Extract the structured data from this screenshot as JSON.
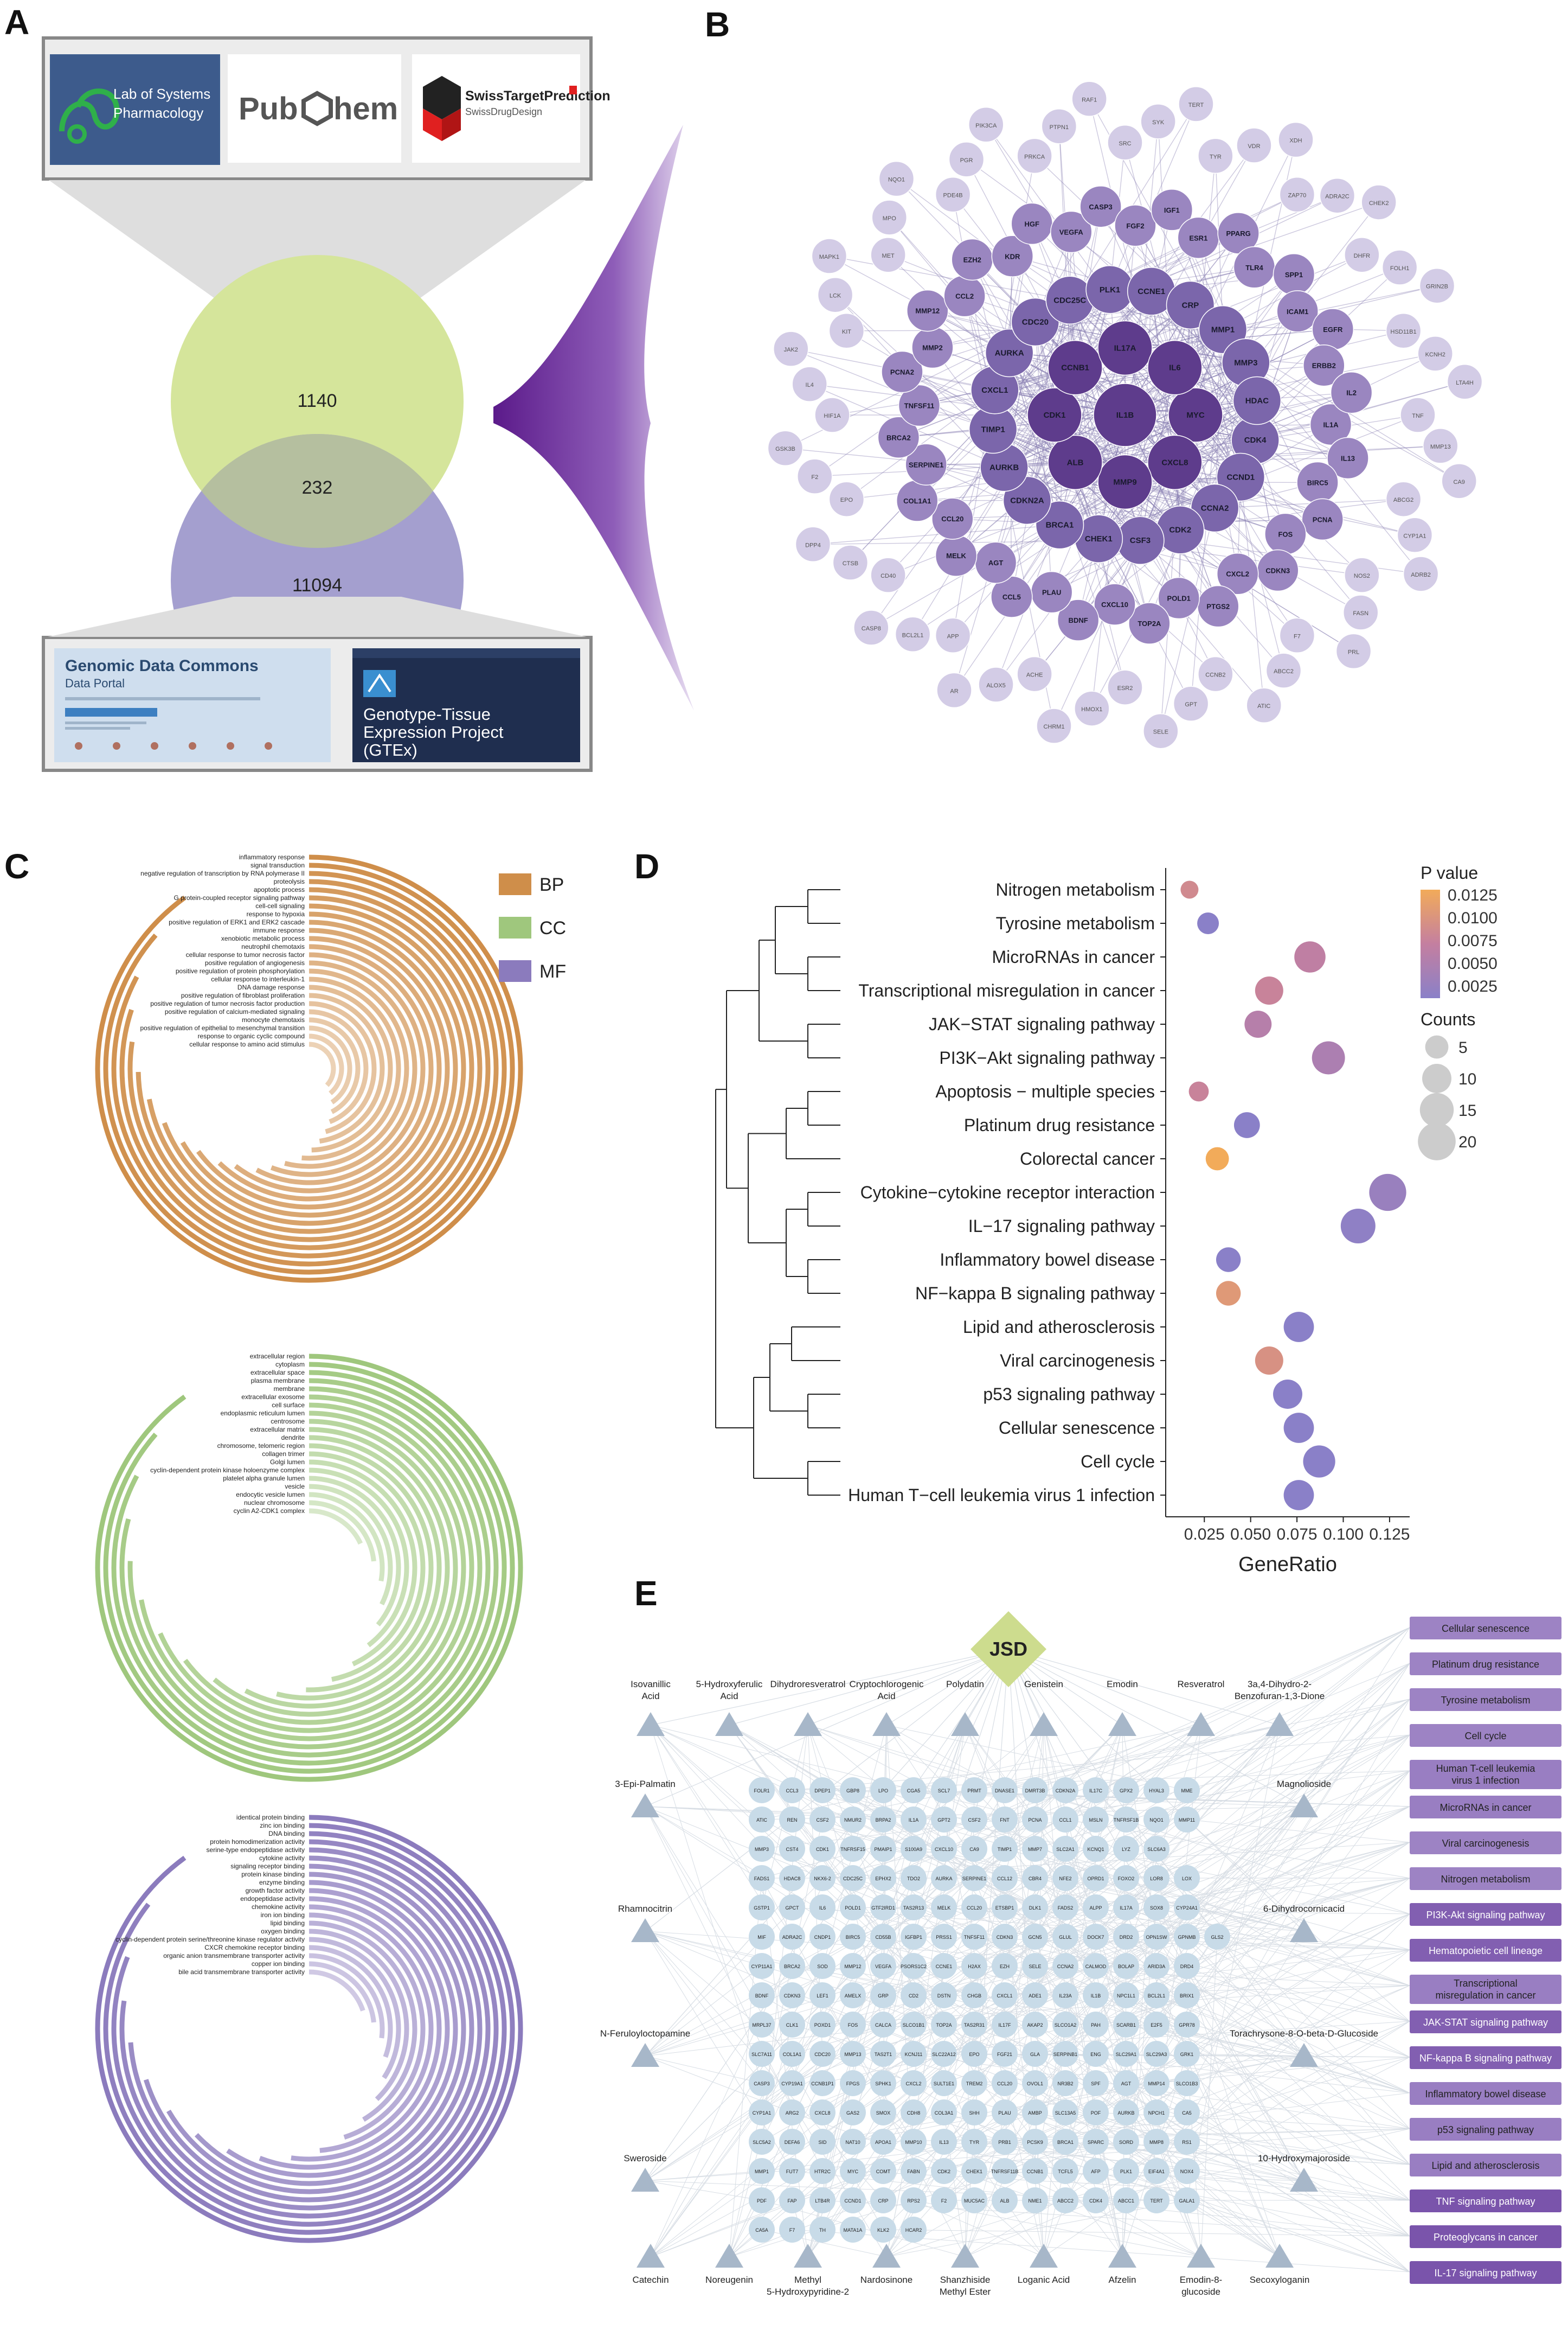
{
  "panels": {
    "a": "A",
    "b": "B",
    "c": "C",
    "d": "D",
    "e": "E"
  },
  "panel_a": {
    "logos": {
      "lsp": "Lab of Systems Pharmacology",
      "lsp_line1": "Lab of Systems",
      "lsp_line2": "Pharmacology",
      "pubchem_left": "Pub",
      "pubchem_right": "hem",
      "swiss_title": "SwissTargetPrediction",
      "swiss_sub": "SwissDrugDesign"
    },
    "venn": {
      "top": "1140",
      "overlap": "232",
      "bottom": "11094"
    },
    "db": {
      "gdc_title": "Genomic Data Commons",
      "gdc_sub": "Data Portal",
      "gtex_line1": "Genotype-Tissue",
      "gtex_line2": "Expression Project",
      "gtex_line3": "(GTEx)"
    },
    "colors": {
      "top_circle": "#d5e59b",
      "bottom_circle": "#a49fcf",
      "overlap": "#b5bf9f"
    }
  },
  "panel_b": {
    "center_nodes": [
      "IL1B",
      "MYC",
      "CXCL8",
      "MMP9",
      "ALB",
      "CDK1",
      "CCNB1",
      "IL17A",
      "IL6",
      "CDK4",
      "CCND1",
      "CCNA2",
      "CDK2",
      "CSF3",
      "CHEK1",
      "BRCA1",
      "CDKN2A",
      "AURKB",
      "TIMP1",
      "CXCL1",
      "AURKA",
      "CDC20",
      "CDC25C",
      "PLK1",
      "CCNE1",
      "CRP",
      "MMP1",
      "MMP3",
      "HDAC"
    ],
    "mid_nodes": [
      "IL1A",
      "IL13",
      "BIRC5",
      "PCNA",
      "FOS",
      "CDKN3",
      "CXCL2",
      "PTGS2",
      "POLD1",
      "TOP2A",
      "CXCL10",
      "BDNF",
      "PLAU",
      "CCL5",
      "AGT",
      "MELK",
      "CCL20",
      "COL1A1",
      "SERPINE1",
      "BRCA2",
      "TNFSF11",
      "PCNA2",
      "MMP2",
      "MMP12",
      "CCL2",
      "EZH2",
      "KDR",
      "HGF",
      "VEGFA",
      "CASP3",
      "FGF2",
      "IGF1",
      "ESR1",
      "PPARG",
      "TLR4",
      "SPP1",
      "ICAM1",
      "EGFR",
      "ERBB2",
      "IL2"
    ],
    "outer_nodes": [
      "TNF",
      "MMP13",
      "CA9",
      "ABCG2",
      "CYP1A1",
      "ADRB2",
      "NOS2",
      "FASN",
      "PRL",
      "F7",
      "ABCC2",
      "ATIC",
      "CCNB2",
      "GPT",
      "SELE",
      "ESR2",
      "HMOX1",
      "CHRM1",
      "ACHE",
      "ALOX5",
      "AR",
      "APP",
      "BCL2L1",
      "CASP8",
      "CD40",
      "CTSB",
      "DPP4",
      "EPO",
      "F2",
      "GSK3B",
      "HIF1A",
      "IL4",
      "JAK2",
      "KIT",
      "LCK",
      "MAPK1",
      "MET",
      "MPO",
      "NQO1",
      "PDE4B",
      "PGR",
      "PIK3CA",
      "PRKCA",
      "PTPN1",
      "RAF1",
      "SRC",
      "SYK",
      "TERT",
      "TYR",
      "VDR",
      "XDH",
      "ZAP70",
      "ADRA2C",
      "CHEK2",
      "DHFR",
      "FOLH1",
      "GRIN2B",
      "HSD11B1",
      "KCNH2",
      "LTA4H"
    ],
    "colors": {
      "dark": "#5e3c8c",
      "mid": "#9a86c0",
      "light": "#d3cce6",
      "pale": "#ebe8f3",
      "edge": "#8f86b5"
    }
  },
  "panel_c": {
    "legend": [
      {
        "label": "BP",
        "color": "#cf8e4a"
      },
      {
        "label": "CC",
        "color": "#9fc77d"
      },
      {
        "label": "MF",
        "color": "#8b7bbd"
      }
    ],
    "bp_terms": [
      "inflammatory response",
      "signal transduction",
      "negative regulation of transcription by RNA polymerase II",
      "proteolysis",
      "apoptotic process",
      "G protein-coupled receptor signaling pathway",
      "cell-cell signaling",
      "response to hypoxia",
      "positive regulation of ERK1 and ERK2 cascade",
      "immune response",
      "xenobiotic metabolic process",
      "neutrophil chemotaxis",
      "cellular response to tumor necrosis factor",
      "positive regulation of angiogenesis",
      "positive regulation of protein phosphorylation",
      "cellular response to interleukin-1",
      "DNA damage response",
      "positive regulation of fibroblast proliferation",
      "positive regulation of tumor necrosis factor production",
      "positive regulation of calcium-mediated signaling",
      "monocyte chemotaxis",
      "positive regulation of epithelial to mesenchymal transition",
      "response to organic cyclic compound",
      "cellular response to amino acid stimulus"
    ],
    "cc_terms": [
      "extracellular region",
      "cytoplasm",
      "extracellular space",
      "plasma membrane",
      "membrane",
      "extracellular exosome",
      "cell surface",
      "endoplasmic reticulum lumen",
      "centrosome",
      "extracellular matrix",
      "dendrite",
      "chromosome, telomeric region",
      "collagen trimer",
      "Golgi lumen",
      "cyclin-dependent protein kinase holoenzyme complex",
      "platelet alpha granule lumen",
      "vesicle",
      "endocytic vesicle lumen",
      "nuclear chromosome",
      "cyclin A2-CDK1 complex"
    ],
    "mf_terms": [
      "identical protein binding",
      "zinc ion binding",
      "DNA binding",
      "protein homodimerization activity",
      "serine-type endopeptidase activity",
      "cytokine activity",
      "signaling receptor binding",
      "protein kinase binding",
      "enzyme binding",
      "growth factor activity",
      "endopeptidase activity",
      "chemokine activity",
      "iron ion binding",
      "lipid binding",
      "oxygen binding",
      "cyclin-dependent protein serine/threonine kinase regulator activity",
      "CXCR chemokine receptor binding",
      "organic anion transmembrane transporter activity",
      "copper ion binding",
      "bile acid transmembrane transporter activity"
    ],
    "bp_values": [
      1.0,
      0.96,
      0.92,
      0.89,
      0.86,
      0.83,
      0.8,
      0.77,
      0.74,
      0.72,
      0.69,
      0.67,
      0.64,
      0.62,
      0.6,
      0.57,
      0.55,
      0.53,
      0.51,
      0.49,
      0.47,
      0.45,
      0.43,
      0.41
    ],
    "cc_values": [
      1.0,
      0.96,
      0.92,
      0.88,
      0.84,
      0.8,
      0.76,
      0.72,
      0.68,
      0.64,
      0.6,
      0.56,
      0.52,
      0.48,
      0.44,
      0.4,
      0.36,
      0.31,
      0.26,
      0.2
    ],
    "mf_values": [
      1.0,
      0.95,
      0.9,
      0.86,
      0.82,
      0.78,
      0.74,
      0.7,
      0.66,
      0.62,
      0.58,
      0.54,
      0.5,
      0.46,
      0.42,
      0.38,
      0.34,
      0.3,
      0.26,
      0.22
    ]
  },
  "chart_data": {
    "type": "scatter",
    "categories": [
      "Nitrogen metabolism",
      "Tyrosine metabolism",
      "MicroRNAs in cancer",
      "Transcriptional misregulation in cancer",
      "JAK−STAT signaling pathway",
      "PI3K−Akt signaling pathway",
      "Apoptosis − multiple species",
      "Platinum drug resistance",
      "Colorectal cancer",
      "Cytokine−cytokine receptor interaction",
      "IL−17 signaling pathway",
      "Inflammatory bowel disease",
      "NF−kappa B signaling pathway",
      "Lipid and atherosclerosis",
      "Viral carcinogenesis",
      "p53 signaling pathway",
      "Cellular senescence",
      "Cell cycle",
      "Human T−cell leukemia virus 1 infection"
    ],
    "gene_ratio": [
      0.017,
      0.027,
      0.082,
      0.06,
      0.054,
      0.092,
      0.022,
      0.048,
      0.032,
      0.124,
      0.108,
      0.038,
      0.038,
      0.076,
      0.06,
      0.07,
      0.076,
      0.087,
      0.076
    ],
    "counts": [
      2,
      4,
      12,
      9,
      8,
      14,
      3,
      7,
      5,
      19,
      16,
      6,
      6,
      11,
      9,
      10,
      11,
      13,
      11
    ],
    "p_value": [
      0.008,
      0.0005,
      0.006,
      0.007,
      0.005,
      0.004,
      0.007,
      0.0005,
      0.013,
      0.002,
      0.001,
      0.0005,
      0.01,
      0.0005,
      0.009,
      0.0005,
      0.0005,
      0.0005,
      0.0005
    ],
    "xlabel": "GeneRatio",
    "xticks": [
      "0.025",
      "0.050",
      "0.075",
      "0.100",
      "0.125"
    ],
    "xlim": [
      0.01,
      0.13
    ],
    "legend_pvalue_title": "P value",
    "legend_pvalue_ticks": [
      "0.0125",
      "0.0100",
      "0.0075",
      "0.0050",
      "0.0025"
    ],
    "legend_counts_title": "Counts",
    "legend_counts_ticks": [
      "5",
      "10",
      "15",
      "20"
    ],
    "color_low": "#8a80c8",
    "color_high": "#f2ab5a"
  },
  "panel_e": {
    "root": "JSD",
    "compounds_top": [
      {
        "line1": "Isovanillic",
        "line2": "Acid"
      },
      {
        "line1": "5-Hydroxyferulic",
        "line2": "Acid"
      },
      {
        "line1": "Dihydroresveratrol",
        "line2": ""
      },
      {
        "line1": "Cryptochlorogenic",
        "line2": "Acid"
      },
      {
        "line1": "Polydatin",
        "line2": ""
      },
      {
        "line1": "Genistein",
        "line2": ""
      },
      {
        "line1": "Emodin",
        "line2": ""
      },
      {
        "line1": "Resveratrol",
        "line2": ""
      },
      {
        "line1": "3a,4-Dihydro-2-",
        "line2": "Benzofuran-1,3-Dione"
      }
    ],
    "compounds_left": [
      "3-Epi-Palmatin",
      "Rhamnocitrin",
      "N-Feruloyloctopamine",
      "Sweroside"
    ],
    "compounds_right": [
      "Magnolioside",
      "6-Dihydrocornicacid",
      "Torachrysone-8-O-beta-D-Glucoside",
      "10-Hydroxymajoroside"
    ],
    "compounds_bottom": [
      {
        "line1": "Catechin",
        "line2": ""
      },
      {
        "line1": "Noreugenin",
        "line2": ""
      },
      {
        "line1": "Methyl",
        "line2": "5-Hydroxypyridine-2"
      },
      {
        "line1": "Nardosinone",
        "line2": ""
      },
      {
        "line1": "Shanzhiside",
        "line2": "Methyl Ester"
      },
      {
        "line1": "Loganic Acid",
        "line2": ""
      },
      {
        "line1": "Afzelin",
        "line2": ""
      },
      {
        "line1": "Emodin-8-",
        "line2": "glucoside"
      },
      {
        "line1": "Secoxyloganin",
        "line2": ""
      }
    ],
    "pathways": [
      {
        "line1": "Cellular senescence",
        "line2": ""
      },
      {
        "line1": "Platinum drug resistance",
        "line2": ""
      },
      {
        "line1": "Tyrosine metabolism",
        "line2": ""
      },
      {
        "line1": "Cell cycle",
        "line2": ""
      },
      {
        "line1": "Human T-cell leukemia",
        "line2": "virus 1 infection"
      },
      {
        "line1": "MicroRNAs in cancer",
        "line2": ""
      },
      {
        "line1": "Viral carcinogenesis",
        "line2": ""
      },
      {
        "line1": "Nitrogen metabolism",
        "line2": ""
      },
      {
        "line1": "PI3K-Akt signaling pathway",
        "line2": ""
      },
      {
        "line1": "Hematopoietic cell lineage",
        "line2": ""
      },
      {
        "line1": "Transcriptional",
        "line2": "misregulation in cancer"
      },
      {
        "line1": "JAK-STAT signaling pathway",
        "line2": ""
      },
      {
        "line1": "NF-kappa B signaling pathway",
        "line2": ""
      },
      {
        "line1": "Inflammatory bowel disease",
        "line2": ""
      },
      {
        "line1": "p53 signaling pathway",
        "line2": ""
      },
      {
        "line1": "Lipid and atherosclerosis",
        "line2": ""
      },
      {
        "line1": "TNF signaling pathway",
        "line2": ""
      },
      {
        "line1": "Proteoglycans in cancer",
        "line2": ""
      },
      {
        "line1": "IL-17 signaling pathway",
        "line2": ""
      }
    ],
    "pathway_shades": [
      0.35,
      0.35,
      0.35,
      0.35,
      0.4,
      0.4,
      0.35,
      0.35,
      0.7,
      0.7,
      0.4,
      0.7,
      0.7,
      0.4,
      0.4,
      0.4,
      0.8,
      0.8,
      0.8
    ],
    "targets": [
      [
        "FOLR1",
        "CCL3",
        "DPEP1",
        "GBP8",
        "LPO",
        "CGA5",
        "SCL7",
        "PRMT",
        "DNASE1",
        "DMRT3B",
        "CDKN2A",
        "IL17C",
        "GPX2",
        "HYAL3",
        "MME"
      ],
      [
        "ATIC",
        "REN",
        "CSF2",
        "NMUR2",
        "BRPA2",
        "IL1A",
        "GPT2",
        "CSF2",
        "FNT",
        "PCNA",
        "CCL1",
        "MSLN",
        "TNFRSF1B",
        "NQO1",
        "MMP11"
      ],
      [
        "MMP3",
        "CST4",
        "CDK1",
        "TNFRSF15",
        "PMAIP1",
        "S100A9",
        "CXCL10",
        "CA9",
        "TIMP1",
        "MMP7",
        "SLC2A1",
        "KCNQ1",
        "LYZ",
        "SLC6A3"
      ],
      [
        "FADS1",
        "HDAC8",
        "NKX6-2",
        "CDC25C",
        "EPHX2",
        "TDO2",
        "AURKA",
        "SERPINE1",
        "CCL12",
        "CBR4",
        "NFE2",
        "OPRD1",
        "FOXO2",
        "LOR8",
        "LOX"
      ],
      [
        "GSTP1",
        "GPCT",
        "IL6",
        "POLD1",
        "GTF2IRD1",
        "TAS2R13",
        "MELK",
        "CCL20",
        "ETSBP1",
        "DLK1",
        "FADS2",
        "ALPP",
        "IL17A",
        "SOX8",
        "CYP24A1"
      ],
      [
        "MIF",
        "ADRA2C",
        "CNDP1",
        "BIRC5",
        "CD55B",
        "IGFBP1",
        "PRSS1",
        "TNFSF11",
        "CDKN3",
        "GCN5",
        "GLUL",
        "DOCK7",
        "DRD2",
        "OPN1SW",
        "GPNMB",
        "GLS2"
      ],
      [
        "CYP11A1",
        "BRCA2",
        "SOD",
        "MMP12",
        "VEGFA",
        "PSORS1C2",
        "CCNE1",
        "H2AX",
        "EZH",
        "SELE",
        "CCNA2",
        "CALMOD",
        "BOLAP",
        "ARID3A",
        "DRD4"
      ],
      [
        "BDNF",
        "CDKN3",
        "LEF1",
        "AMELX",
        "GRP",
        "CD2",
        "DSTN",
        "CHGB",
        "CXCL1",
        "ADE1",
        "IL23A",
        "IL1B",
        "NPC1L1",
        "BCL2L1",
        "BRIX1"
      ],
      [
        "MRPL37",
        "CLK1",
        "POXD1",
        "FOS",
        "CALCA",
        "SLCO1B1",
        "TOP2A",
        "TAS2R31",
        "IL17F",
        "AKAP2",
        "SLCO1A2",
        "PAH",
        "SCARB1",
        "E2F5",
        "GPR78"
      ],
      [
        "SLC7A11",
        "COL1A1",
        "CDC20",
        "MMP13",
        "TAS2T1",
        "KCNJ11",
        "SLC22A12",
        "EPO",
        "FGF21",
        "GLA",
        "SERPINB1",
        "ENG",
        "SLC29A1",
        "SLC29A3",
        "GRK1"
      ],
      [
        "CASP3",
        "CYP19A1",
        "CCNB1P1",
        "FPGS",
        "SPHK1",
        "CXCL2",
        "SULT1E1",
        "TREM2",
        "CCL20",
        "OVOL1",
        "NR3B2",
        "SPF",
        "AGT",
        "MMP14",
        "SLCO1B3"
      ],
      [
        "CYP1A1",
        "ARG2",
        "CXCL8",
        "GAS2",
        "SMOX",
        "CDH8",
        "COL3A1",
        "SHH",
        "PLAU",
        "AMBP",
        "SLC13A5",
        "POF",
        "AURKB",
        "NPCH1",
        "CA5"
      ],
      [
        "SLC5A2",
        "DEFA6",
        "SID",
        "NAT10",
        "APOA1",
        "MMP10",
        "IL13",
        "TYR",
        "PRB1",
        "PCSK9",
        "BRCA1",
        "SPARC",
        "SORD",
        "MMP8",
        "RS1"
      ],
      [
        "MMP1",
        "FUT7",
        "HTR2C",
        "MYC",
        "COMT",
        "FABN",
        "CDK2",
        "CHEK1",
        "TNFRSF11B",
        "CCNB1",
        "TCFL5",
        "AFP",
        "PLK1",
        "EIF4A1",
        "NOX4"
      ],
      [
        "PDF",
        "FAP",
        "LTB4R",
        "CCND1",
        "CRP",
        "RPS2",
        "F2",
        "MUC5AC",
        "ALB",
        "NME1",
        "ABCC2",
        "CDK4",
        "ABCC1",
        "TERT",
        "GALA1"
      ],
      [
        "CA5A",
        "F7",
        "TH",
        "MATA1A",
        "KLK2",
        "HCAR2"
      ]
    ],
    "colors": {
      "root": "#cddc8e",
      "compound": "#a7b7c9",
      "target": "#c8dbe8",
      "edge": "#d7dde4"
    }
  }
}
